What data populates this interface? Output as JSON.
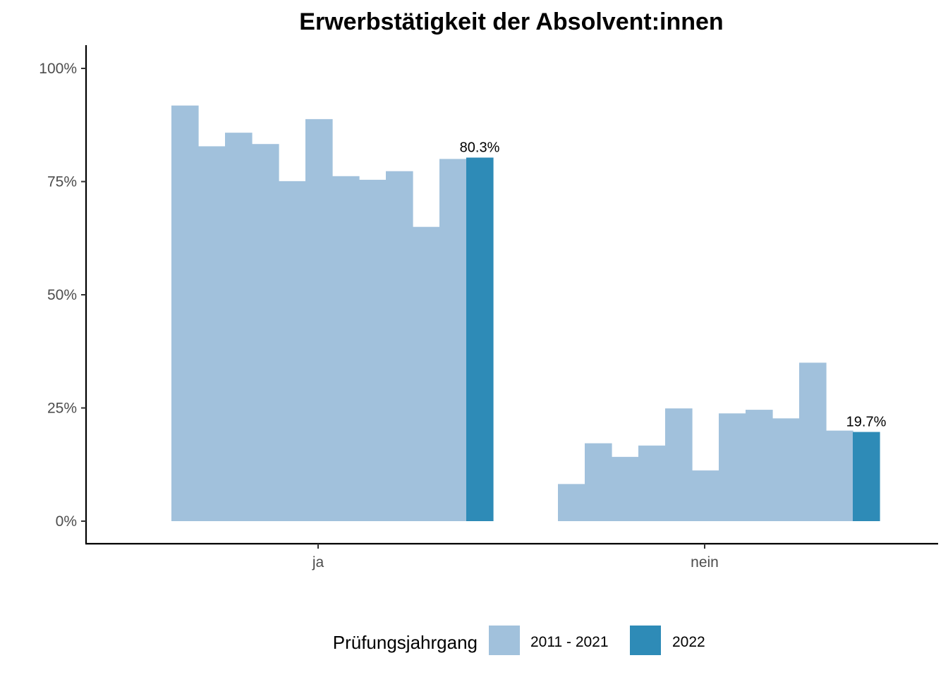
{
  "chart_data": {
    "type": "bar",
    "title": "Erwerbstätigkeit der Absolvent:innen",
    "xlabel": "",
    "ylabel": "",
    "categories": [
      "ja",
      "nein"
    ],
    "ylim": [
      0,
      1.05
    ],
    "y_ticks": [
      {
        "value": 0,
        "label": "0%"
      },
      {
        "value": 0.25,
        "label": "25%"
      },
      {
        "value": 0.5,
        "label": "50%"
      },
      {
        "value": 0.75,
        "label": "75%"
      },
      {
        "value": 1.0,
        "label": "100%"
      }
    ],
    "grid": false,
    "legend": {
      "title": "Prüfungsjahrgang",
      "placement": "bottom",
      "entries": [
        "2011 - 2021",
        "2022"
      ]
    },
    "series": [
      {
        "name": "2011 - 2021",
        "color": "#a1c1dc",
        "values": {
          "ja": [
            0.918,
            0.828,
            0.858,
            0.833,
            0.751,
            0.888,
            0.762,
            0.754,
            0.773,
            0.65,
            0.8
          ],
          "nein": [
            0.082,
            0.172,
            0.142,
            0.167,
            0.249,
            0.112,
            0.238,
            0.246,
            0.227,
            0.35,
            0.2
          ]
        }
      },
      {
        "name": "2022",
        "color": "#2e8bb7",
        "values": {
          "ja": [
            0.803
          ],
          "nein": [
            0.197
          ]
        },
        "labels": {
          "ja": "80.3%",
          "nein": "19.7%"
        }
      }
    ]
  }
}
